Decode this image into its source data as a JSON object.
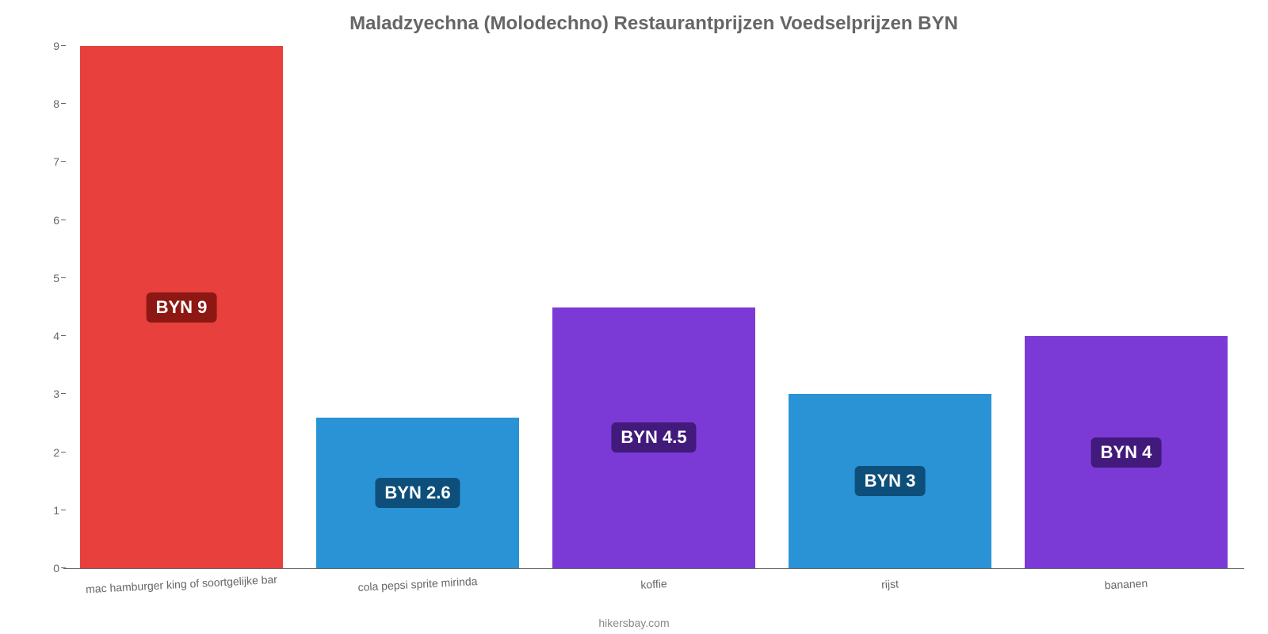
{
  "chart": {
    "type": "bar",
    "title": "Maladzyechna (Molodechno) Restaurantprijzen Voedselprijzen BYN",
    "title_fontsize": 24,
    "title_color": "#666666",
    "background_color": "#ffffff",
    "ylim": [
      0,
      9
    ],
    "yticks": [
      0,
      1,
      2,
      3,
      4,
      5,
      6,
      7,
      8,
      9
    ],
    "ytick_labels": [
      "0",
      "1",
      "2",
      "3",
      "4",
      "5",
      "6",
      "7",
      "8",
      "9"
    ],
    "ytick_color": "#666666",
    "ytick_fontsize": 14,
    "xlabel_fontsize": 14,
    "xlabel_color": "#666666",
    "xlabel_rotation_deg": -3,
    "bar_width_pct": 86,
    "bars": [
      {
        "category": "mac hamburger king of soortgelijke bar",
        "value": 9,
        "value_label": "BYN 9",
        "color": "#e8403c",
        "label_bg": "#8d1813"
      },
      {
        "category": "cola pepsi sprite mirinda",
        "value": 2.6,
        "value_label": "BYN 2.6",
        "color": "#2a93d5",
        "label_bg": "#0d4f7a"
      },
      {
        "category": "koffie",
        "value": 4.5,
        "value_label": "BYN 4.5",
        "color": "#7b3ad6",
        "label_bg": "#411a7c"
      },
      {
        "category": "rijst",
        "value": 3,
        "value_label": "BYN 3",
        "color": "#2a93d5",
        "label_bg": "#0d4f7a"
      },
      {
        "category": "bananen",
        "value": 4,
        "value_label": "BYN 4",
        "color": "#7b3ad6",
        "label_bg": "#411a7c"
      }
    ],
    "value_label_fontsize": 22,
    "value_label_color": "#ffffff",
    "attribution": "hikersbay.com",
    "attribution_color": "#888888",
    "attribution_fontsize": 14
  }
}
